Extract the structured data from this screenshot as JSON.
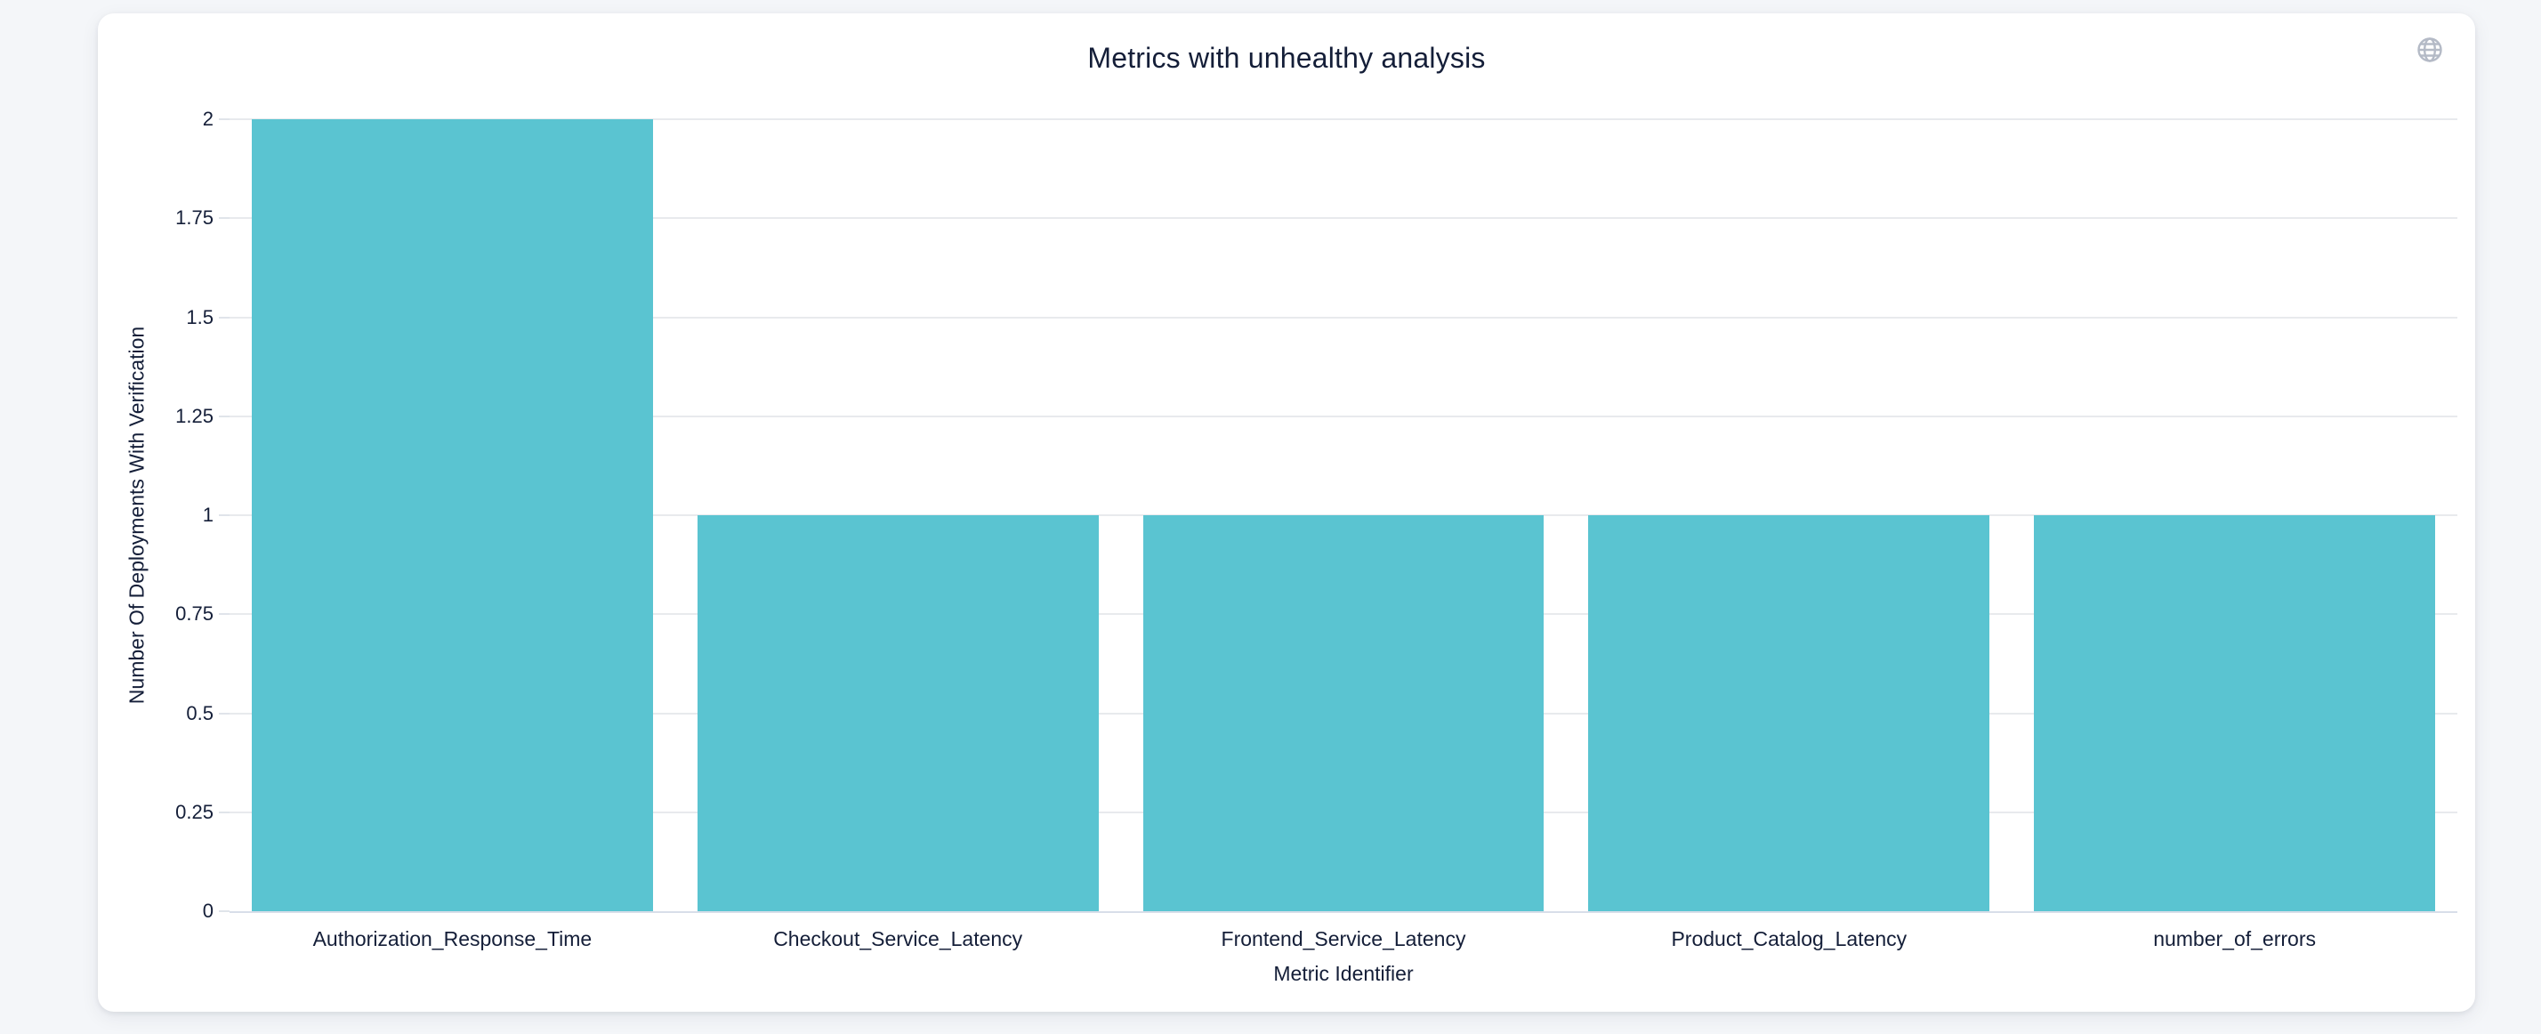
{
  "page": {
    "background": "#f4f6f9"
  },
  "card": {
    "title": "Metrics with unhealthy analysis"
  },
  "toolbar": {
    "globe_icon": "globe"
  },
  "chart_data": {
    "type": "bar",
    "title": "Metrics with unhealthy analysis",
    "categories": [
      "Authorization_Response_Time",
      "Checkout_Service_Latency",
      "Frontend_Service_Latency",
      "Product_Catalog_Latency",
      "number_of_errors"
    ],
    "values": [
      2,
      1,
      1,
      1,
      1
    ],
    "xlabel": "Metric Identifier",
    "ylabel": "Number Of Deployments With Verification",
    "ylim": [
      0,
      2
    ],
    "yticks": [
      0,
      0.25,
      0.5,
      0.75,
      1,
      1.25,
      1.5,
      1.75,
      2
    ],
    "legend": false,
    "grid": true,
    "colors": {
      "bar": "#5ac4d1",
      "grid_line": "#e8eaed",
      "axis_line": "#d8dee9",
      "tick": "#e0e4ea",
      "text": "#141e38",
      "icon": "#b4bac6"
    }
  }
}
